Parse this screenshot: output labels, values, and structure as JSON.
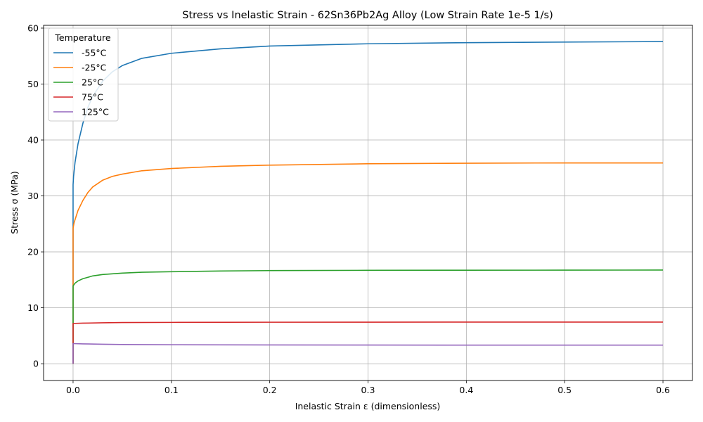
{
  "chart_data": {
    "type": "line",
    "title": "Stress vs Inelastic Strain - 62Sn36Pb2Ag Alloy (Low Strain Rate 1e-5 1/s)",
    "xlabel": "Inelastic Strain ε (dimensionless)",
    "ylabel": "Stress σ (MPa)",
    "xlim": [
      -0.03,
      0.63
    ],
    "ylim": [
      -3,
      60.5
    ],
    "xticks": [
      "0.0",
      "0.1",
      "0.2",
      "0.3",
      "0.4",
      "0.5",
      "0.6"
    ],
    "xtick_values": [
      0,
      0.1,
      0.2,
      0.3,
      0.4,
      0.5,
      0.6
    ],
    "yticks": [
      "0",
      "10",
      "20",
      "30",
      "40",
      "50",
      "60"
    ],
    "ytick_values": [
      0,
      10,
      20,
      30,
      40,
      50,
      60
    ],
    "grid": true,
    "legend": {
      "title": "Temperature",
      "position": "upper-left"
    },
    "series": [
      {
        "name": "-55°C",
        "color": "#1f77b4",
        "x": [
          0,
          0,
          0.0005,
          0.002,
          0.005,
          0.01,
          0.015,
          0.02,
          0.03,
          0.04,
          0.05,
          0.07,
          0.1,
          0.15,
          0.2,
          0.3,
          0.4,
          0.5,
          0.6
        ],
        "y": [
          0,
          32,
          33.5,
          36,
          39.3,
          43,
          45.8,
          47.8,
          50.5,
          52.2,
          53.3,
          54.6,
          55.5,
          56.3,
          56.8,
          57.2,
          57.4,
          57.5,
          57.6
        ]
      },
      {
        "name": "-25°C",
        "color": "#ff7f0e",
        "x": [
          0,
          0,
          0.001,
          0.003,
          0.005,
          0.01,
          0.015,
          0.02,
          0.03,
          0.04,
          0.05,
          0.07,
          0.1,
          0.15,
          0.2,
          0.3,
          0.4,
          0.5,
          0.6
        ],
        "y": [
          0,
          24.2,
          25.2,
          26.3,
          27.4,
          29.2,
          30.6,
          31.6,
          32.8,
          33.5,
          33.9,
          34.5,
          34.9,
          35.3,
          35.5,
          35.75,
          35.85,
          35.9,
          35.9
        ]
      },
      {
        "name": "25°C",
        "color": "#2ca02c",
        "x": [
          0,
          0,
          0.002,
          0.005,
          0.01,
          0.02,
          0.03,
          0.05,
          0.07,
          0.1,
          0.15,
          0.2,
          0.3,
          0.4,
          0.5,
          0.6
        ],
        "y": [
          0,
          13.9,
          14.4,
          14.8,
          15.2,
          15.7,
          15.95,
          16.2,
          16.35,
          16.45,
          16.58,
          16.65,
          16.7,
          16.72,
          16.73,
          16.75
        ]
      },
      {
        "name": "75°C",
        "color": "#d62728",
        "x": [
          0,
          0,
          0.01,
          0.03,
          0.05,
          0.1,
          0.2,
          0.3,
          0.4,
          0.5,
          0.6
        ],
        "y": [
          0,
          7.2,
          7.25,
          7.32,
          7.36,
          7.39,
          7.42,
          7.43,
          7.44,
          7.44,
          7.45
        ]
      },
      {
        "name": "125°C",
        "color": "#9467bd",
        "x": [
          0,
          0,
          0.01,
          0.03,
          0.05,
          0.1,
          0.2,
          0.3,
          0.4,
          0.5,
          0.6
        ],
        "y": [
          0,
          3.6,
          3.55,
          3.48,
          3.44,
          3.39,
          3.36,
          3.34,
          3.33,
          3.33,
          3.33
        ]
      }
    ]
  }
}
